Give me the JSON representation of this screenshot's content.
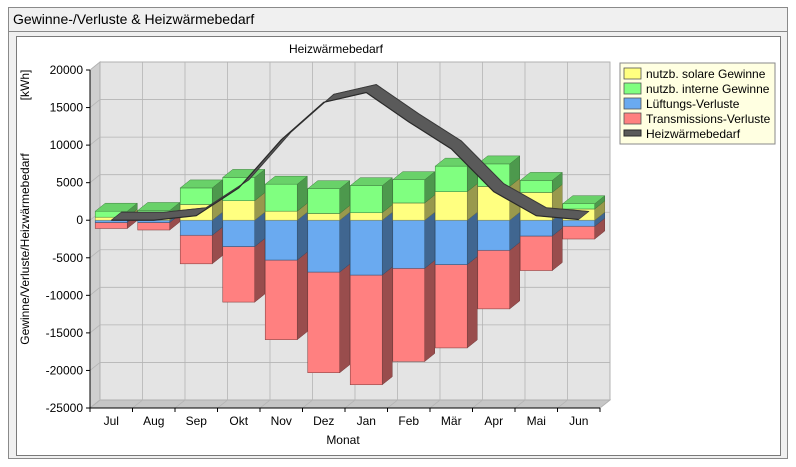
{
  "window": {
    "title": "Gewinne-/Verluste & Heizwärmebedarf"
  },
  "chart_data": {
    "type": "bar",
    "stacked": true,
    "three_d": true,
    "title": "Heizwärmebedarf",
    "xlabel": "Monat",
    "ylabel": "Gewinne/Verluste/Heizwärmebedarf",
    "unit_label": "[kWh]",
    "ylim": [
      -25000,
      20000
    ],
    "yticks": [
      20000,
      15000,
      10000,
      5000,
      0,
      -5000,
      -10000,
      -15000,
      -20000,
      -25000
    ],
    "categories": [
      "Jul",
      "Aug",
      "Sep",
      "Okt",
      "Nov",
      "Dez",
      "Jan",
      "Feb",
      "Mär",
      "Apr",
      "Mai",
      "Jun"
    ],
    "legend_position": "top-right",
    "series": [
      {
        "name": "nutzb. solare Gewinne",
        "kind": "positive",
        "color": "#ffff80",
        "values": [
          400,
          400,
          2100,
          2600,
          1200,
          900,
          1000,
          2300,
          3800,
          4500,
          3700,
          1500
        ]
      },
      {
        "name": "nutzb. interne Gewinne",
        "kind": "positive",
        "color": "#80ff80",
        "values": [
          800,
          900,
          2200,
          3100,
          3600,
          3300,
          3600,
          3100,
          3400,
          3000,
          1600,
          700
        ]
      },
      {
        "name": "Lüftungs-Verluste",
        "kind": "negative",
        "color": "#6aaaf0",
        "values": [
          -300,
          -300,
          -2000,
          -3500,
          -5300,
          -6900,
          -7300,
          -6400,
          -5900,
          -4000,
          -2100,
          -800
        ]
      },
      {
        "name": "Transmissions-Verluste",
        "kind": "negative",
        "color": "#ff8080",
        "values": [
          -800,
          -1000,
          -3800,
          -7400,
          -10600,
          -13400,
          -14600,
          -12400,
          -11100,
          -7800,
          -4600,
          -1700
        ]
      },
      {
        "name": "Heizwärmebedarf",
        "kind": "line",
        "color": "#505050",
        "values": [
          0,
          0,
          600,
          4300,
          10700,
          15700,
          17000,
          13100,
          9500,
          3800,
          600,
          100
        ]
      }
    ]
  }
}
